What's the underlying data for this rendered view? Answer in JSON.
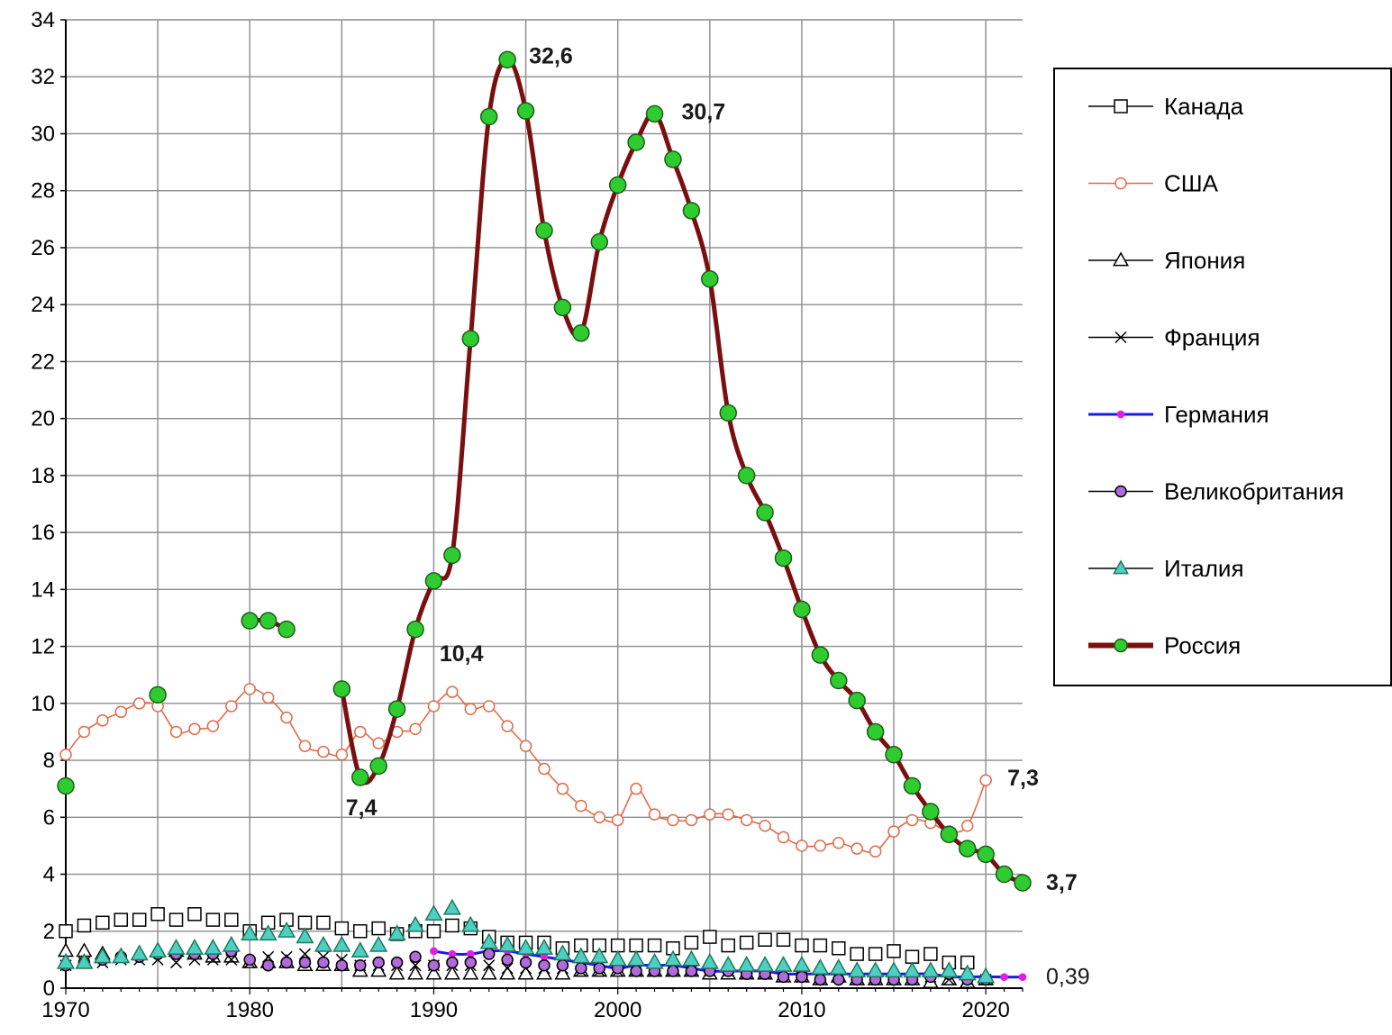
{
  "chart_data": {
    "type": "line",
    "title": "",
    "xlabel": "",
    "ylabel": "",
    "xlim": [
      1970,
      2022
    ],
    "ylim": [
      0,
      34
    ],
    "xticks": [
      1970,
      1980,
      1990,
      2000,
      2010,
      2020
    ],
    "yticks": [
      0,
      2,
      4,
      6,
      8,
      10,
      12,
      14,
      16,
      18,
      20,
      22,
      24,
      26,
      28,
      30,
      32,
      34
    ],
    "xtick_labels": [
      "1970",
      "1980",
      "1990",
      "2000",
      "2010",
      "2020"
    ],
    "ytick_labels": [
      "0",
      "2",
      "4",
      "6",
      "8",
      "10",
      "12",
      "14",
      "16",
      "18",
      "20",
      "22",
      "24",
      "26",
      "28",
      "30",
      "32",
      "34"
    ],
    "grid": true,
    "legend_position": "right",
    "series": [
      {
        "name": "Канада",
        "color": "#000000",
        "marker": "square-open",
        "fill": "#ffffff",
        "line": false,
        "x": [
          1970,
          1971,
          1972,
          1973,
          1974,
          1975,
          1976,
          1977,
          1978,
          1979,
          1980,
          1981,
          1982,
          1983,
          1984,
          1985,
          1986,
          1987,
          1988,
          1989,
          1990,
          1991,
          1992,
          1993,
          1994,
          1995,
          1996,
          1997,
          1998,
          1999,
          2000,
          2001,
          2002,
          2003,
          2004,
          2005,
          2006,
          2007,
          2008,
          2009,
          2010,
          2011,
          2012,
          2013,
          2014,
          2015,
          2016,
          2017,
          2018,
          2019
        ],
        "y": [
          2.0,
          2.2,
          2.3,
          2.4,
          2.4,
          2.6,
          2.4,
          2.6,
          2.4,
          2.4,
          2.0,
          2.3,
          2.4,
          2.3,
          2.3,
          2.1,
          2.0,
          2.1,
          1.9,
          2.0,
          2.0,
          2.2,
          2.1,
          1.8,
          1.6,
          1.6,
          1.6,
          1.4,
          1.5,
          1.5,
          1.5,
          1.5,
          1.5,
          1.4,
          1.6,
          1.8,
          1.5,
          1.6,
          1.7,
          1.7,
          1.5,
          1.5,
          1.4,
          1.2,
          1.2,
          1.3,
          1.1,
          1.2,
          0.9,
          0.9
        ]
      },
      {
        "name": "США",
        "color": "#e06b4a",
        "marker": "circle-open",
        "fill": "#ffffff",
        "line": true,
        "x": [
          1970,
          1971,
          1972,
          1973,
          1974,
          1975,
          1976,
          1977,
          1978,
          1979,
          1980,
          1981,
          1982,
          1983,
          1984,
          1985,
          1986,
          1987,
          1988,
          1989,
          1990,
          1991,
          1992,
          1993,
          1994,
          1995,
          1996,
          1997,
          1998,
          1999,
          2000,
          2001,
          2002,
          2003,
          2004,
          2005,
          2006,
          2007,
          2008,
          2009,
          2010,
          2011,
          2012,
          2013,
          2014,
          2015,
          2016,
          2017,
          2018,
          2019,
          2020
        ],
        "y": [
          8.2,
          9.0,
          9.4,
          9.7,
          10.0,
          9.9,
          9.0,
          9.1,
          9.2,
          9.9,
          10.5,
          10.2,
          9.5,
          8.5,
          8.3,
          8.2,
          9.0,
          8.6,
          9.0,
          9.1,
          9.9,
          10.4,
          9.8,
          9.9,
          9.2,
          8.5,
          7.7,
          7.0,
          6.4,
          6.0,
          5.9,
          7.0,
          6.1,
          5.9,
          5.9,
          6.1,
          6.1,
          5.9,
          5.7,
          5.3,
          5.0,
          5.0,
          5.1,
          4.9,
          4.8,
          5.5,
          5.9,
          5.8,
          5.5,
          5.7,
          7.3
        ]
      },
      {
        "name": "Япония",
        "color": "#000000",
        "marker": "triangle-open",
        "fill": "#ffffff",
        "line": false,
        "x": [
          1970,
          1971,
          1972,
          1973,
          1974,
          1975,
          1976,
          1977,
          1978,
          1979,
          1980,
          1981,
          1982,
          1983,
          1984,
          1985,
          1986,
          1987,
          1988,
          1989,
          1990,
          1991,
          1992,
          1993,
          1994,
          1995,
          1996,
          1997,
          1998,
          1999,
          2000,
          2001,
          2002,
          2003,
          2004,
          2005,
          2006,
          2007,
          2008,
          2009,
          2010,
          2011,
          2012,
          2013,
          2014,
          2015,
          2016,
          2017,
          2018,
          2019,
          2020
        ],
        "y": [
          1.3,
          1.3,
          1.2,
          1.1,
          1.2,
          1.3,
          1.3,
          1.2,
          1.1,
          1.1,
          0.9,
          0.9,
          0.9,
          0.8,
          0.8,
          0.8,
          0.6,
          0.6,
          0.5,
          0.5,
          0.5,
          0.5,
          0.5,
          0.5,
          0.5,
          0.5,
          0.5,
          0.5,
          0.6,
          0.6,
          0.6,
          0.6,
          0.6,
          0.6,
          0.6,
          0.5,
          0.5,
          0.5,
          0.5,
          0.4,
          0.4,
          0.3,
          0.4,
          0.3,
          0.3,
          0.3,
          0.3,
          0.2,
          0.3,
          0.2,
          0.3
        ]
      },
      {
        "name": "Франция",
        "color": "#000000",
        "marker": "x",
        "fill": "none",
        "line": false,
        "x": [
          1970,
          1971,
          1972,
          1973,
          1974,
          1975,
          1976,
          1977,
          1978,
          1979,
          1980,
          1981,
          1982,
          1983,
          1984,
          1985,
          1986,
          1987,
          1988,
          1989,
          1990,
          1991,
          1992,
          1993,
          1994,
          1995,
          1996,
          1997,
          1998,
          1999,
          2000,
          2001,
          2002,
          2003,
          2004,
          2005,
          2006,
          2007,
          2008,
          2009,
          2010,
          2011,
          2012,
          2013,
          2014,
          2015,
          2016,
          2017,
          2018,
          2019,
          2020
        ],
        "y": [
          0.8,
          0.9,
          0.9,
          1.0,
          1.0,
          1.0,
          0.9,
          1.0,
          1.0,
          1.0,
          0.9,
          1.1,
          1.1,
          1.2,
          1.1,
          1.0,
          0.8,
          0.8,
          0.8,
          0.8,
          0.8,
          0.8,
          0.8,
          0.8,
          0.7,
          0.7,
          0.7,
          0.7,
          0.6,
          0.6,
          0.6,
          0.6,
          0.6,
          0.6,
          0.6,
          0.6,
          0.6,
          0.5,
          0.5,
          0.5,
          0.4,
          0.4,
          0.4,
          0.4,
          0.4,
          0.4,
          0.4,
          0.4,
          0.3,
          0.3,
          0.3
        ]
      },
      {
        "name": "Германия",
        "color": "#1a1ae6",
        "marker": "dot",
        "fill": "#e020e0",
        "line": true,
        "x": [
          1990,
          1991,
          1992,
          1993,
          1994,
          1995,
          1996,
          1997,
          1998,
          1999,
          2000,
          2001,
          2002,
          2003,
          2004,
          2005,
          2006,
          2007,
          2008,
          2009,
          2010,
          2011,
          2012,
          2013,
          2014,
          2015,
          2016,
          2017,
          2018,
          2019,
          2020,
          2021,
          2022
        ],
        "y": [
          1.3,
          1.2,
          1.2,
          1.3,
          1.3,
          1.2,
          1.1,
          1.0,
          0.9,
          0.8,
          0.7,
          0.8,
          0.8,
          0.8,
          0.7,
          0.6,
          0.6,
          0.6,
          0.6,
          0.5,
          0.5,
          0.5,
          0.5,
          0.5,
          0.5,
          0.5,
          0.5,
          0.5,
          0.4,
          0.4,
          0.4,
          0.39,
          0.39
        ]
      },
      {
        "name": "Великобритания",
        "color": "#000000",
        "marker": "circle",
        "fill": "#b16ad9",
        "line": false,
        "x": [
          1970,
          1971,
          1972,
          1973,
          1974,
          1975,
          1976,
          1977,
          1978,
          1979,
          1980,
          1981,
          1982,
          1983,
          1984,
          1985,
          1986,
          1987,
          1988,
          1989,
          1990,
          1991,
          1992,
          1993,
          1994,
          1995,
          1996,
          1997,
          1998,
          1999,
          2000,
          2001,
          2002,
          2003,
          2004,
          2005,
          2006,
          2007,
          2008,
          2009,
          2010,
          2011,
          2012,
          2013,
          2014,
          2015,
          2016,
          2017,
          2018,
          2019,
          2020
        ],
        "y": [
          0.8,
          0.9,
          1.0,
          1.1,
          1.1,
          1.2,
          1.2,
          1.2,
          1.2,
          1.3,
          1.0,
          0.8,
          0.9,
          0.9,
          0.9,
          0.8,
          0.8,
          0.9,
          0.9,
          1.1,
          0.8,
          0.9,
          0.9,
          1.2,
          1.0,
          0.9,
          0.8,
          0.8,
          0.7,
          0.7,
          0.7,
          0.6,
          0.6,
          0.6,
          0.6,
          0.6,
          0.6,
          0.5,
          0.5,
          0.4,
          0.4,
          0.3,
          0.3,
          0.3,
          0.3,
          0.3,
          0.3,
          0.4,
          0.5,
          0.3,
          0.3
        ]
      },
      {
        "name": "Италия",
        "color": "#1e7a5a",
        "marker": "triangle",
        "fill": "#4ecfc3",
        "line": false,
        "x": [
          1970,
          1971,
          1972,
          1973,
          1974,
          1975,
          1976,
          1977,
          1978,
          1979,
          1980,
          1981,
          1982,
          1983,
          1984,
          1985,
          1986,
          1987,
          1988,
          1989,
          1990,
          1991,
          1992,
          1993,
          1994,
          1995,
          1996,
          1997,
          1998,
          1999,
          2000,
          2001,
          2002,
          2003,
          2004,
          2005,
          2006,
          2007,
          2008,
          2009,
          2010,
          2011,
          2012,
          2013,
          2014,
          2015,
          2016,
          2017,
          2018,
          2019,
          2020
        ],
        "y": [
          0.9,
          0.9,
          1.1,
          1.1,
          1.2,
          1.3,
          1.4,
          1.4,
          1.4,
          1.5,
          1.9,
          1.9,
          2.0,
          1.8,
          1.5,
          1.5,
          1.3,
          1.5,
          1.9,
          2.2,
          2.6,
          2.8,
          2.2,
          1.6,
          1.5,
          1.4,
          1.4,
          1.2,
          1.1,
          1.1,
          1.0,
          1.0,
          0.9,
          1.0,
          1.0,
          0.9,
          0.8,
          0.8,
          0.8,
          0.8,
          0.8,
          0.7,
          0.7,
          0.6,
          0.6,
          0.6,
          0.6,
          0.6,
          0.6,
          0.5,
          0.4
        ]
      },
      {
        "name": "Россия",
        "color": "#7a0f0f",
        "marker": "circle",
        "fill": "#2ecc2e",
        "line": true,
        "segments": [
          {
            "x": [
              1970
            ],
            "y": [
              7.1
            ]
          },
          {
            "x": [
              1975
            ],
            "y": [
              10.3
            ]
          },
          {
            "x": [
              1980,
              1981,
              1982
            ],
            "y": [
              12.9,
              12.9,
              12.6
            ]
          },
          {
            "x": [
              1985,
              1986,
              1987,
              1988,
              1989,
              1990,
              1991,
              1992,
              1993,
              1994,
              1995,
              1996,
              1997,
              1998,
              1999,
              2000,
              2001,
              2002,
              2003,
              2004,
              2005,
              2006,
              2007,
              2008,
              2009,
              2010,
              2011,
              2012,
              2013,
              2014,
              2015,
              2016,
              2017,
              2018,
              2019,
              2020,
              2021,
              2022
            ],
            "y": [
              10.5,
              7.4,
              7.8,
              9.8,
              12.6,
              14.3,
              15.2,
              22.8,
              30.6,
              32.6,
              30.8,
              26.6,
              23.9,
              23.0,
              26.2,
              28.2,
              29.7,
              30.7,
              29.1,
              27.3,
              24.9,
              20.2,
              18.0,
              16.7,
              15.1,
              13.3,
              11.7,
              10.8,
              10.1,
              9.0,
              8.2,
              7.1,
              6.2,
              5.4,
              4.9,
              4.7,
              4.0,
              3.7
            ]
          }
        ]
      }
    ],
    "annotations": [
      {
        "text": "32,6",
        "x": 1994,
        "y": 32.6
      },
      {
        "text": "30,7",
        "x": 2002,
        "y": 30.7
      },
      {
        "text": "10,4",
        "x": 1991,
        "y": 10.4
      },
      {
        "text": "7,4",
        "x": 1986,
        "y": 7.4
      },
      {
        "text": "7,3",
        "x": 2020,
        "y": 7.3
      },
      {
        "text": "3,7",
        "x": 2022,
        "y": 3.7
      },
      {
        "text": "0,39",
        "x": 2022,
        "y": 0.39
      }
    ]
  }
}
